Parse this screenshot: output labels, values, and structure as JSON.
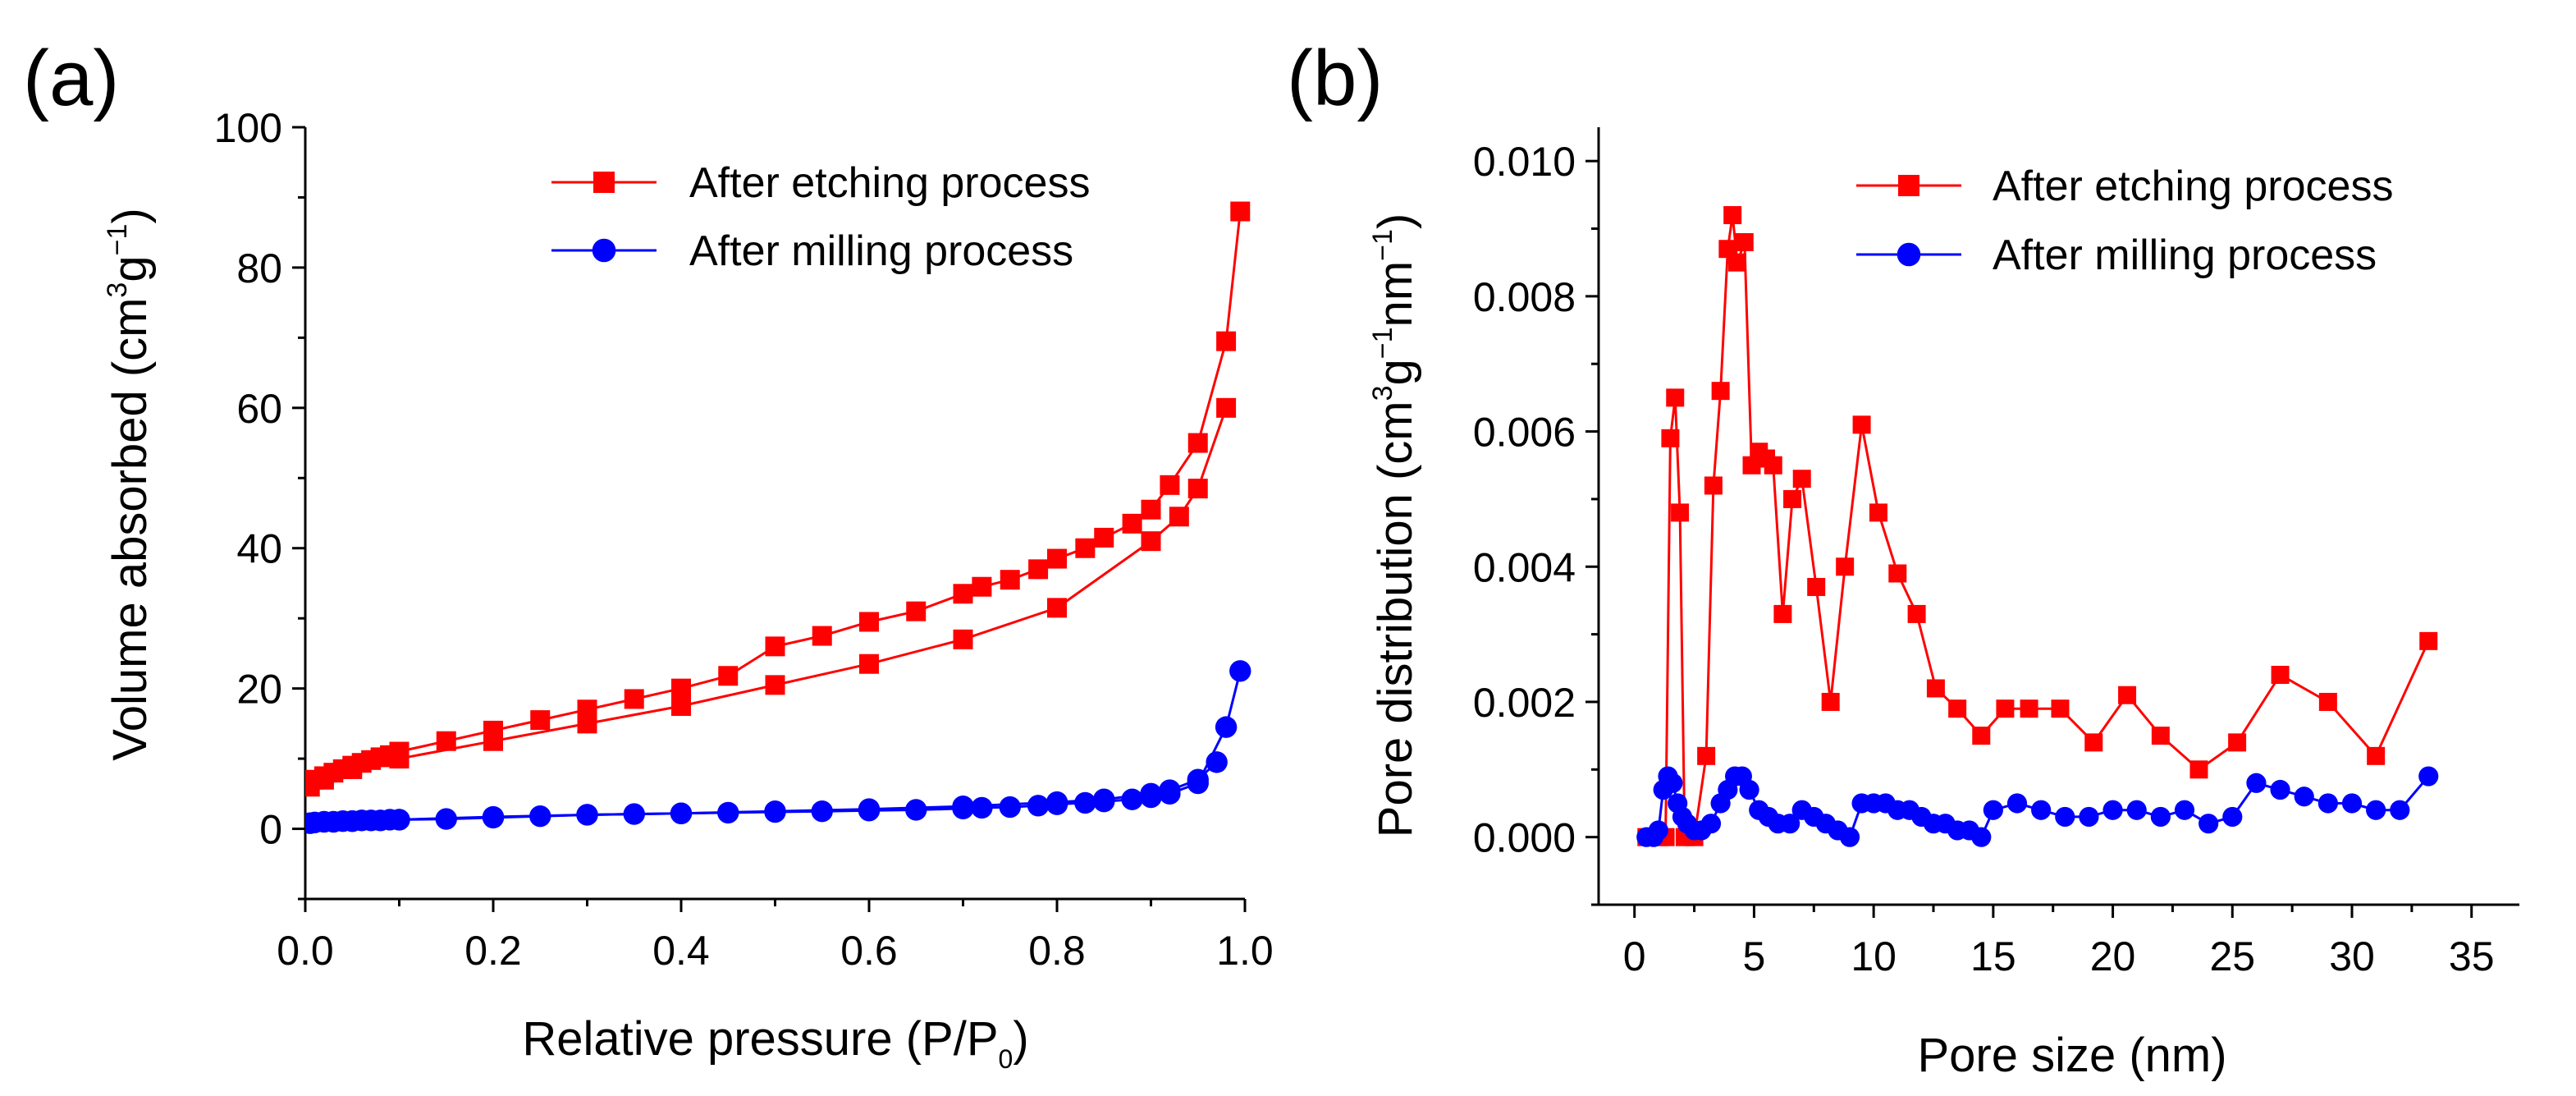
{
  "chart_data": [
    {
      "type": "line",
      "panel_label": "(a)",
      "xlabel": {
        "main": "Relative pressure (P/P",
        "sub": "0",
        "end": ")"
      },
      "ylabel": {
        "main": "Volume absorbed (cm",
        "sup1": "3",
        "mid": "g",
        "sup2": "−1",
        "end": ")"
      },
      "xlim": [
        0,
        1.0
      ],
      "ylim": [
        -10,
        100
      ],
      "xticks": [
        0.0,
        0.2,
        0.4,
        0.6,
        0.8,
        1.0
      ],
      "xtick_labels": [
        "0.0",
        "0.2",
        "0.4",
        "0.6",
        "0.8",
        "1.0"
      ],
      "yticks": [
        0,
        20,
        40,
        60,
        80,
        100
      ],
      "ytick_labels": [
        "0",
        "20",
        "40",
        "60",
        "80",
        "100"
      ],
      "legend_position": "top-right",
      "series": [
        {
          "name": "After etching process",
          "color": "#ff0000",
          "marker": "square",
          "branches": [
            {
              "x": [
                0.005,
                0.01,
                0.02,
                0.03,
                0.04,
                0.05,
                0.06,
                0.07,
                0.08,
                0.09,
                0.1,
                0.15,
                0.2,
                0.25,
                0.3,
                0.35,
                0.4,
                0.45,
                0.5,
                0.55,
                0.6,
                0.65,
                0.7,
                0.72,
                0.75,
                0.78,
                0.8,
                0.83,
                0.85,
                0.88,
                0.9,
                0.92,
                0.95,
                0.98,
                0.995
              ],
              "y": [
                6.0,
                7.0,
                7.5,
                8.0,
                8.5,
                9.0,
                9.4,
                9.8,
                10.2,
                10.5,
                11.0,
                12.5,
                14.0,
                15.5,
                17.0,
                18.5,
                20.0,
                21.8,
                26.0,
                27.5,
                29.5,
                31.0,
                33.5,
                34.5,
                35.5,
                37.0,
                38.5,
                40.0,
                41.5,
                43.5,
                45.5,
                49.0,
                55.0,
                69.5,
                88.0
              ]
            },
            {
              "x": [
                0.98,
                0.95,
                0.93,
                0.9,
                0.8,
                0.7,
                0.6,
                0.5,
                0.4,
                0.3,
                0.2,
                0.1,
                0.05,
                0.02
              ],
              "y": [
                60.0,
                48.5,
                44.5,
                41.0,
                31.5,
                27.0,
                23.5,
                20.5,
                17.5,
                15.0,
                12.5,
                10.0,
                8.5,
                7.0
              ]
            }
          ]
        },
        {
          "name": "After milling process",
          "color": "#0000ff",
          "marker": "circle",
          "branches": [
            {
              "x": [
                0.005,
                0.01,
                0.02,
                0.03,
                0.04,
                0.05,
                0.06,
                0.07,
                0.08,
                0.09,
                0.1,
                0.15,
                0.2,
                0.25,
                0.3,
                0.35,
                0.4,
                0.45,
                0.5,
                0.55,
                0.6,
                0.65,
                0.7,
                0.72,
                0.75,
                0.78,
                0.8,
                0.83,
                0.85,
                0.88,
                0.9,
                0.92,
                0.95,
                0.98,
                0.995
              ],
              "y": [
                0.8,
                0.9,
                1.0,
                1.0,
                1.1,
                1.1,
                1.2,
                1.2,
                1.2,
                1.3,
                1.3,
                1.4,
                1.6,
                1.8,
                2.0,
                2.1,
                2.2,
                2.3,
                2.4,
                2.5,
                2.6,
                2.7,
                2.9,
                3.0,
                3.1,
                3.3,
                3.5,
                3.7,
                3.9,
                4.2,
                4.5,
                5.0,
                6.5,
                14.5,
                22.5
              ]
            },
            {
              "x": [
                0.97,
                0.95,
                0.92,
                0.9,
                0.85,
                0.8,
                0.7,
                0.6,
                0.5,
                0.4,
                0.3,
                0.2,
                0.1,
                0.05
              ],
              "y": [
                9.5,
                7.0,
                5.5,
                5.0,
                4.2,
                3.8,
                3.2,
                2.8,
                2.5,
                2.2,
                2.0,
                1.7,
                1.3,
                1.1
              ]
            }
          ]
        }
      ]
    },
    {
      "type": "line",
      "panel_label": "(b)",
      "xlabel": {
        "main": "Pore size (nm)"
      },
      "ylabel": {
        "main": "Pore distribution (cm",
        "sup1": "3",
        "mid": "g",
        "sup2": "−1",
        "mid2": "nm",
        "sup3": "−1",
        "end": ")"
      },
      "xlim": [
        -1.5,
        37
      ],
      "ylim": [
        -0.001,
        0.0105
      ],
      "xticks": [
        0,
        5,
        10,
        15,
        20,
        25,
        30,
        35
      ],
      "xtick_labels": [
        "0",
        "5",
        "10",
        "15",
        "20",
        "25",
        "30",
        "35"
      ],
      "yticks": [
        0.0,
        0.002,
        0.004,
        0.006,
        0.008,
        0.01
      ],
      "ytick_labels": [
        "0.000",
        "0.002",
        "0.004",
        "0.006",
        "0.008",
        "0.010"
      ],
      "legend_position": "top-right",
      "series": [
        {
          "name": "After etching process",
          "color": "#ff0000",
          "marker": "square",
          "x": [
            0.5,
            1.0,
            1.3,
            1.5,
            1.7,
            1.9,
            2.1,
            2.5,
            3.0,
            3.3,
            3.6,
            3.9,
            4.1,
            4.3,
            4.6,
            4.9,
            5.2,
            5.5,
            5.8,
            6.2,
            6.6,
            7.0,
            7.6,
            8.2,
            8.8,
            9.5,
            10.2,
            11.0,
            11.8,
            12.6,
            13.5,
            14.5,
            15.5,
            16.5,
            17.8,
            19.2,
            20.6,
            22.0,
            23.6,
            25.2,
            27.0,
            29.0,
            31.0,
            33.2
          ],
          "y": [
            0.0,
            0.0,
            0.0,
            0.0059,
            0.0065,
            0.0048,
            0.0,
            0.0,
            0.0012,
            0.0052,
            0.0066,
            0.0087,
            0.0092,
            0.0085,
            0.0088,
            0.0055,
            0.0057,
            0.0056,
            0.0055,
            0.0033,
            0.005,
            0.0053,
            0.0037,
            0.002,
            0.004,
            0.0061,
            0.0048,
            0.0039,
            0.0033,
            0.0022,
            0.0019,
            0.0015,
            0.0019,
            0.0019,
            0.0019,
            0.0014,
            0.0021,
            0.0015,
            0.001,
            0.0014,
            0.0024,
            0.002,
            0.0012,
            0.0029
          ]
        },
        {
          "name": "After milling process",
          "color": "#0000ff",
          "marker": "circle",
          "x": [
            0.5,
            0.8,
            1.0,
            1.2,
            1.4,
            1.6,
            1.8,
            2.0,
            2.2,
            2.5,
            2.8,
            3.2,
            3.6,
            3.9,
            4.2,
            4.5,
            4.8,
            5.2,
            5.6,
            6.0,
            6.5,
            7.0,
            7.5,
            8.0,
            8.5,
            9.0,
            9.5,
            10.0,
            10.5,
            11.0,
            11.5,
            12.0,
            12.5,
            13.0,
            13.5,
            14.0,
            14.5,
            15.0,
            16.0,
            17.0,
            18.0,
            19.0,
            20.0,
            21.0,
            22.0,
            23.0,
            24.0,
            25.0,
            26.0,
            27.0,
            28.0,
            29.0,
            30.0,
            31.0,
            32.0,
            33.2
          ],
          "y": [
            0.0,
            0.0,
            0.0001,
            0.0007,
            0.0009,
            0.0008,
            0.0005,
            0.0003,
            0.0002,
            0.0001,
            0.0001,
            0.0002,
            0.0005,
            0.0007,
            0.0009,
            0.0009,
            0.0007,
            0.0004,
            0.0003,
            0.0002,
            0.0002,
            0.0004,
            0.0003,
            0.0002,
            0.0001,
            0.0,
            0.0005,
            0.0005,
            0.0005,
            0.0004,
            0.0004,
            0.0003,
            0.0002,
            0.0002,
            0.0001,
            0.0001,
            0.0,
            0.0004,
            0.0005,
            0.0004,
            0.0003,
            0.0003,
            0.0004,
            0.0004,
            0.0003,
            0.0004,
            0.0002,
            0.0003,
            0.0008,
            0.0007,
            0.0006,
            0.0005,
            0.0005,
            0.0004,
            0.0004,
            0.0009
          ]
        }
      ]
    }
  ]
}
